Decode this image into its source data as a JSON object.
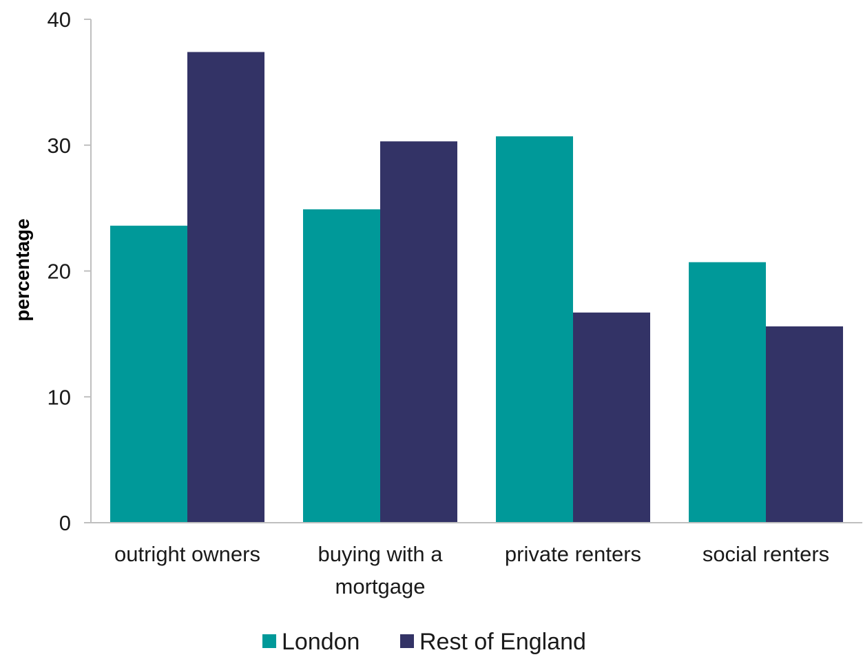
{
  "chart_data": {
    "type": "bar",
    "title": "",
    "xlabel": "",
    "ylabel": "percentage",
    "ylim": [
      0,
      40
    ],
    "yticks": [
      0,
      10,
      20,
      30,
      40
    ],
    "categories": [
      [
        "outright owners"
      ],
      [
        "buying with a",
        "mortgage"
      ],
      [
        "private renters"
      ],
      [
        "social renters"
      ]
    ],
    "series": [
      {
        "name": "London",
        "color": "#009999",
        "values": [
          23.6,
          24.9,
          30.7,
          20.7
        ]
      },
      {
        "name": "Rest of England",
        "color": "#333366",
        "values": [
          37.4,
          30.3,
          16.7,
          15.6
        ]
      }
    ],
    "grid": false,
    "legend_position": "bottom"
  }
}
